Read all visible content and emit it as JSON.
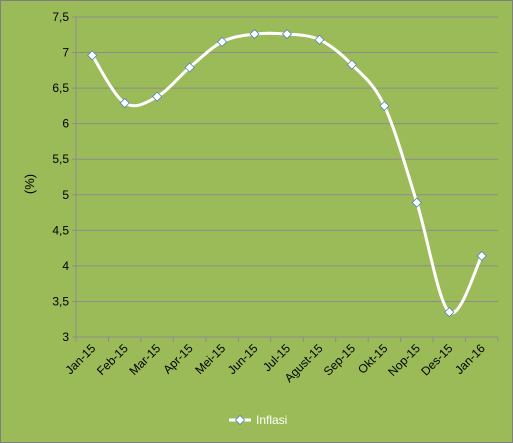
{
  "chart_data": {
    "type": "line",
    "categories": [
      "Jan-15",
      "Feb-15",
      "Mar-15",
      "Apr-15",
      "Mei-15",
      "Jun-15",
      "Jul-15",
      "Agust-15",
      "Sep-15",
      "Okt-15",
      "Nop-15",
      "Des-15",
      "Jan-16"
    ],
    "series": [
      {
        "name": "Inflasi",
        "values": [
          6.96,
          6.29,
          6.38,
          6.79,
          7.15,
          7.26,
          7.26,
          7.18,
          6.83,
          6.25,
          4.89,
          3.35,
          4.14
        ],
        "color": "#ffffff"
      }
    ],
    "title": "",
    "xlabel": "",
    "ylabel": "(%)",
    "ylim": [
      3,
      7.5
    ],
    "y_ticks": [
      3,
      3.5,
      4,
      4.5,
      5,
      5.5,
      6,
      6.5,
      7,
      7.5
    ],
    "y_tick_labels": [
      "3",
      "3,5",
      "4",
      "4,5",
      "5",
      "5,5",
      "6",
      "6,5",
      "7",
      "7,5"
    ],
    "grid": true,
    "legend_position": "bottom",
    "background_color": "#9bbb59",
    "gridline_color": "#8c8c8c"
  }
}
